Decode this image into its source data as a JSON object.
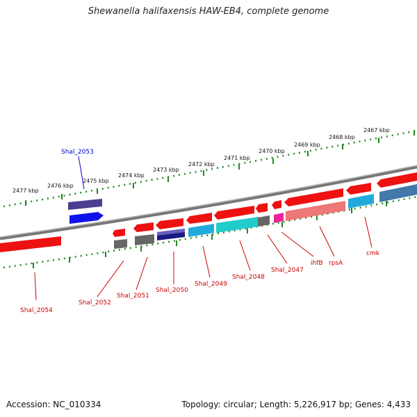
{
  "title": "Shewanella halifaxensis HAW-EB4, complete genome",
  "footer": {
    "accession": "Accession: NC_010334",
    "summary": "Topology: circular; Length: 5,226,917 bp; Genes: 4,433"
  },
  "scale_labels": [
    "2477 kbp",
    "2476 kbp",
    "2475 kbp",
    "2474 kbp",
    "2473 kbp",
    "2472 kbp",
    "2471 kbp",
    "2470 kbp",
    "2469 kbp",
    "2468 kbp",
    "2467 kbp"
  ],
  "gene_labels": {
    "shal2053": "Shal_2053",
    "shal2054": "Shal_2054",
    "shal2052": "Shal_2052",
    "shal2051": "Shal_2051",
    "shal2050": "Shal_2050",
    "shal2049": "Shal_2049",
    "shal2048": "Shal_2048",
    "shal2047": "Shal_2047",
    "ihfb": "ihfB",
    "rpsa": "rpsA",
    "cmk": "cmk"
  },
  "colors": {
    "backbone": "#888888",
    "cds": "#ee1111",
    "rna_gray": "#666666",
    "purple": "#4a3f8f",
    "blue": "#1111ee",
    "navy": "#1a1a80",
    "cyan": "#22aadd",
    "teal": "#22cccc",
    "magenta": "#ee2299",
    "pink": "#ee7777",
    "steel": "#4477aa",
    "tick": "#228822",
    "label_red": "#cc0000",
    "label_blue": "#0000cc"
  }
}
